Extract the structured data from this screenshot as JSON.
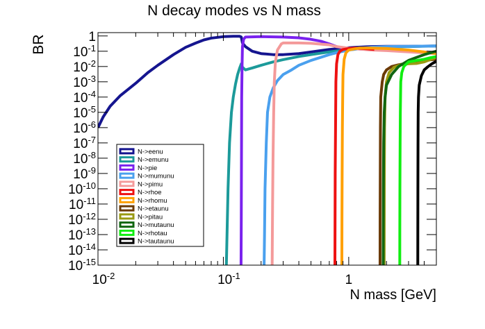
{
  "chart_data": {
    "type": "line",
    "title": "N decay modes vs N mass",
    "xlabel": "N mass [GeV]",
    "ylabel": "BR",
    "xscale": "log",
    "yscale": "log",
    "xlim": [
      0.01,
      5.0
    ],
    "ylim": [
      1e-15,
      2
    ],
    "grid": false,
    "legend_position": "bottom-left",
    "x_ticks": [
      {
        "value": 0.01,
        "base": "10",
        "exp": "-2"
      },
      {
        "value": 0.1,
        "base": "10",
        "exp": "-1"
      },
      {
        "value": 1,
        "base": "1",
        "exp": ""
      }
    ],
    "y_ticks": [
      {
        "value": 1,
        "base": "1",
        "exp": ""
      },
      {
        "value": 0.1,
        "base": "10",
        "exp": "-1"
      },
      {
        "value": 0.01,
        "base": "10",
        "exp": "-2"
      },
      {
        "value": 0.001,
        "base": "10",
        "exp": "-3"
      },
      {
        "value": 0.0001,
        "base": "10",
        "exp": "-4"
      },
      {
        "value": 1e-05,
        "base": "10",
        "exp": "-5"
      },
      {
        "value": 1e-06,
        "base": "10",
        "exp": "-6"
      },
      {
        "value": 1e-07,
        "base": "10",
        "exp": "-7"
      },
      {
        "value": 1e-08,
        "base": "10",
        "exp": "-8"
      },
      {
        "value": 1e-09,
        "base": "10",
        "exp": "-9"
      },
      {
        "value": 1e-10,
        "base": "10",
        "exp": "-10"
      },
      {
        "value": 1e-11,
        "base": "10",
        "exp": "-11"
      },
      {
        "value": 1e-12,
        "base": "10",
        "exp": "-12"
      },
      {
        "value": 1e-13,
        "base": "10",
        "exp": "-13"
      },
      {
        "value": 1e-14,
        "base": "10",
        "exp": "-14"
      },
      {
        "value": 1e-15,
        "base": "10",
        "exp": "-15"
      }
    ],
    "series": [
      {
        "name": "N->eenu",
        "color": "#15158f",
        "points": [
          [
            0.01,
            1e-06
          ],
          [
            0.011,
            5e-06
          ],
          [
            0.0125,
            2.5e-05
          ],
          [
            0.015,
            0.00012
          ],
          [
            0.02,
            0.0008
          ],
          [
            0.025,
            0.004
          ],
          [
            0.03,
            0.012
          ],
          [
            0.04,
            0.06
          ],
          [
            0.05,
            0.18
          ],
          [
            0.06,
            0.34
          ],
          [
            0.07,
            0.55
          ],
          [
            0.08,
            0.72
          ],
          [
            0.1,
            0.9
          ],
          [
            0.12,
            0.95
          ],
          [
            0.135,
            0.95
          ],
          [
            0.139,
            0.85
          ],
          [
            0.142,
            0.35
          ],
          [
            0.15,
            0.2
          ],
          [
            0.17,
            0.1
          ],
          [
            0.2,
            0.07
          ],
          [
            0.25,
            0.06
          ],
          [
            0.3,
            0.06
          ],
          [
            0.4,
            0.07
          ],
          [
            0.5,
            0.09
          ],
          [
            0.7,
            0.13
          ],
          [
            1.0,
            0.17
          ],
          [
            1.5,
            0.2
          ],
          [
            2.0,
            0.21
          ],
          [
            3.0,
            0.21
          ],
          [
            5.0,
            0.22
          ]
        ]
      },
      {
        "name": "N->emunu",
        "color": "#1c9a9a",
        "points": [
          [
            0.1057,
            1e-15
          ],
          [
            0.107,
            1e-13
          ],
          [
            0.109,
            1e-10
          ],
          [
            0.112,
            1e-07
          ],
          [
            0.116,
            1e-05
          ],
          [
            0.12,
            0.0001
          ],
          [
            0.125,
            0.0007
          ],
          [
            0.13,
            0.003
          ],
          [
            0.135,
            0.008
          ],
          [
            0.139,
            0.015
          ],
          [
            0.142,
            0.009
          ],
          [
            0.15,
            0.006
          ],
          [
            0.17,
            0.008
          ],
          [
            0.2,
            0.012
          ],
          [
            0.25,
            0.02
          ],
          [
            0.3,
            0.028
          ],
          [
            0.4,
            0.045
          ],
          [
            0.5,
            0.06
          ],
          [
            0.7,
            0.09
          ],
          [
            1.0,
            0.13
          ],
          [
            1.5,
            0.17
          ],
          [
            2.0,
            0.19
          ],
          [
            3.0,
            0.2
          ],
          [
            5.0,
            0.22
          ]
        ]
      },
      {
        "name": "N->pie",
        "color": "#7a22ee",
        "points": [
          [
            0.1384,
            1e-15
          ],
          [
            0.139,
            1e-12
          ],
          [
            0.1395,
            1e-08
          ],
          [
            0.14,
            0.0001
          ],
          [
            0.141,
            0.01
          ],
          [
            0.142,
            0.2
          ],
          [
            0.145,
            0.6
          ],
          [
            0.15,
            0.85
          ],
          [
            0.2,
            0.9
          ],
          [
            0.3,
            0.85
          ],
          [
            0.4,
            0.75
          ],
          [
            0.5,
            0.6
          ],
          [
            0.6,
            0.45
          ],
          [
            0.7,
            0.3
          ],
          [
            0.8,
            0.2
          ],
          [
            0.9,
            0.16
          ],
          [
            1.0,
            0.15
          ],
          [
            1.5,
            0.13
          ],
          [
            2.0,
            0.12
          ],
          [
            3.0,
            0.1
          ],
          [
            5.0,
            0.08
          ]
        ]
      },
      {
        "name": "N->mumunu",
        "color": "#4aa0ee",
        "points": [
          [
            0.2114,
            1e-15
          ],
          [
            0.213,
            1e-13
          ],
          [
            0.215,
            1e-10
          ],
          [
            0.22,
            1e-07
          ],
          [
            0.225,
            1e-05
          ],
          [
            0.235,
            0.0001
          ],
          [
            0.25,
            0.0004
          ],
          [
            0.27,
            0.0012
          ],
          [
            0.3,
            0.003
          ],
          [
            0.35,
            0.006
          ],
          [
            0.4,
            0.012
          ],
          [
            0.5,
            0.025
          ],
          [
            0.6,
            0.04
          ],
          [
            0.7,
            0.06
          ],
          [
            0.8,
            0.08
          ],
          [
            1.0,
            0.12
          ],
          [
            1.5,
            0.18
          ],
          [
            2.0,
            0.2
          ],
          [
            3.0,
            0.21
          ],
          [
            5.0,
            0.22
          ]
        ]
      },
      {
        "name": "N->pimu",
        "color": "#f49a9a",
        "points": [
          [
            0.2451,
            1e-15
          ],
          [
            0.246,
            1e-13
          ],
          [
            0.247,
            1e-11
          ],
          [
            0.249,
            1e-08
          ],
          [
            0.252,
            1e-05
          ],
          [
            0.255,
            0.001
          ],
          [
            0.26,
            0.02
          ],
          [
            0.27,
            0.12
          ],
          [
            0.29,
            0.3
          ],
          [
            0.3,
            0.35
          ],
          [
            0.4,
            0.35
          ],
          [
            0.5,
            0.33
          ],
          [
            0.7,
            0.26
          ],
          [
            0.8,
            0.2
          ],
          [
            1.0,
            0.16
          ],
          [
            1.5,
            0.12
          ],
          [
            2.0,
            0.11
          ],
          [
            3.0,
            0.09
          ],
          [
            5.0,
            0.07
          ]
        ]
      },
      {
        "name": "N->rhoe",
        "color": "#ee1111",
        "points": [
          [
            0.776,
            1e-15
          ],
          [
            0.778,
            1e-12
          ],
          [
            0.78,
            1e-09
          ],
          [
            0.785,
            1e-06
          ],
          [
            0.79,
            0.001
          ],
          [
            0.8,
            0.015
          ],
          [
            0.82,
            0.06
          ],
          [
            0.85,
            0.1
          ],
          [
            0.9,
            0.13
          ],
          [
            1.0,
            0.15
          ],
          [
            1.1,
            0.16
          ],
          [
            1.3,
            0.15
          ],
          [
            1.6,
            0.13
          ]
        ]
      },
      {
        "name": "N->rhomu",
        "color": "#ffa000",
        "points": [
          [
            0.8814,
            1e-15
          ],
          [
            0.883,
            1e-12
          ],
          [
            0.886,
            1e-09
          ],
          [
            0.89,
            1e-06
          ],
          [
            0.895,
            0.0001
          ],
          [
            0.9,
            0.003
          ],
          [
            0.92,
            0.03
          ],
          [
            0.95,
            0.08
          ],
          [
            1.0,
            0.12
          ],
          [
            1.2,
            0.16
          ],
          [
            1.5,
            0.16
          ],
          [
            2.0,
            0.15
          ],
          [
            3.0,
            0.12
          ],
          [
            4.0,
            0.09
          ],
          [
            5.0,
            0.07
          ]
        ]
      },
      {
        "name": "N->etaunu",
        "color": "#6b3a05",
        "points": [
          [
            1.7782,
            1e-15
          ],
          [
            1.78,
            1e-12
          ],
          [
            1.785,
            1e-09
          ],
          [
            1.79,
            1e-06
          ],
          [
            1.8,
            0.0001
          ],
          [
            1.85,
            0.001
          ],
          [
            1.9,
            0.003
          ],
          [
            2.0,
            0.006
          ],
          [
            2.2,
            0.01
          ],
          [
            2.5,
            0.013
          ],
          [
            3.0,
            0.017
          ],
          [
            4.0,
            0.025
          ],
          [
            5.0,
            0.03
          ]
        ]
      },
      {
        "name": "N->pitau",
        "color": "#9a9a12",
        "points": [
          [
            1.9165,
            1e-15
          ],
          [
            1.918,
            1e-13
          ],
          [
            1.92,
            1e-11
          ],
          [
            1.925,
            1e-08
          ],
          [
            1.93,
            1e-06
          ],
          [
            1.95,
            0.0001
          ],
          [
            2.0,
            0.001
          ],
          [
            2.1,
            0.004
          ],
          [
            2.3,
            0.009
          ],
          [
            2.6,
            0.013
          ],
          [
            3.0,
            0.015
          ],
          [
            3.5,
            0.016
          ],
          [
            4.0,
            0.02
          ],
          [
            5.0,
            0.04
          ]
        ]
      },
      {
        "name": "N->mutaunu",
        "color": "#116611",
        "points": [
          [
            1.8825,
            1e-15
          ],
          [
            1.885,
            1e-13
          ],
          [
            1.89,
            1e-10
          ],
          [
            1.9,
            1e-07
          ],
          [
            1.92,
            1e-05
          ],
          [
            1.95,
            0.0001
          ],
          [
            2.0,
            0.0006
          ],
          [
            2.2,
            0.003
          ],
          [
            2.5,
            0.01
          ],
          [
            3.0,
            0.025
          ],
          [
            3.5,
            0.04
          ],
          [
            4.0,
            0.06
          ],
          [
            4.5,
            0.08
          ],
          [
            5.0,
            0.1
          ]
        ]
      },
      {
        "name": "N->rhotau",
        "color": "#11ee11",
        "points": [
          [
            2.5534,
            1e-15
          ],
          [
            2.555,
            1e-13
          ],
          [
            2.56,
            1e-10
          ],
          [
            2.57,
            1e-07
          ],
          [
            2.58,
            1e-05
          ],
          [
            2.6,
            0.001
          ],
          [
            2.65,
            0.004
          ],
          [
            2.75,
            0.01
          ],
          [
            3.0,
            0.02
          ],
          [
            3.5,
            0.025
          ],
          [
            4.0,
            0.03
          ],
          [
            4.5,
            0.038
          ],
          [
            5.0,
            0.045
          ]
        ]
      },
      {
        "name": "N->tautaunu",
        "color": "#000000",
        "points": [
          [
            3.5545,
            1e-15
          ],
          [
            3.557,
            1e-13
          ],
          [
            3.562,
            1e-10
          ],
          [
            3.57,
            1e-07
          ],
          [
            3.58,
            1e-05
          ],
          [
            3.6,
            0.0001
          ],
          [
            3.65,
            0.0006
          ],
          [
            3.8,
            0.0025
          ],
          [
            4.0,
            0.006
          ],
          [
            4.3,
            0.01
          ],
          [
            4.6,
            0.015
          ],
          [
            5.0,
            0.022
          ]
        ]
      }
    ]
  }
}
